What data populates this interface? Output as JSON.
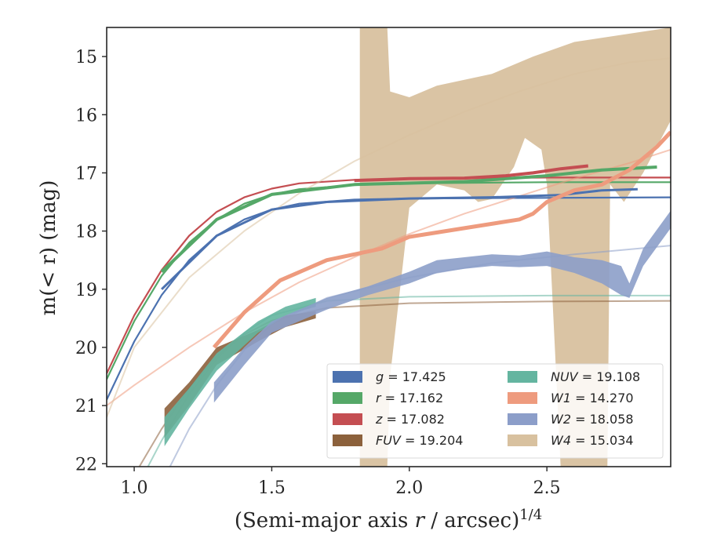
{
  "chart_data": {
    "type": "line",
    "xlabel_main": "(Semi-major axis ",
    "xlabel_var": "r",
    "xlabel_unit": " / arcsec)",
    "xlabel_sup": "1/4",
    "ylabel": "m(< r) (mag)",
    "xlim": [
      0.9,
      2.95
    ],
    "ylim": [
      22.05,
      14.5
    ],
    "y_inverted": true,
    "x_ticks": [
      1.0,
      1.5,
      2.0,
      2.5
    ],
    "x_tick_labels": [
      "1.0",
      "1.5",
      "2.0",
      "2.5"
    ],
    "y_ticks": [
      15,
      16,
      17,
      18,
      19,
      20,
      21,
      22
    ],
    "y_tick_labels": [
      "15",
      "16",
      "17",
      "18",
      "19",
      "20",
      "21",
      "22"
    ],
    "grid": false,
    "legend_position": "lower-right",
    "legend": [
      {
        "band": "g",
        "value": "= 17.425",
        "color": "#4c72b0",
        "italic_multi": false
      },
      {
        "band": "r",
        "value": "= 17.162",
        "color": "#55a868",
        "italic_multi": false
      },
      {
        "band": "z",
        "value": "= 17.082",
        "color": "#c44e52",
        "italic_multi": false
      },
      {
        "band": "FUV",
        "value": "= 19.204",
        "color": "#8c613c",
        "italic_multi": true
      },
      {
        "band": "NUV",
        "value": "= 19.108",
        "color": "#64b5a0",
        "italic_multi": true
      },
      {
        "band": "W1",
        "value": "= 14.270",
        "color": "#ee9b7e",
        "italic_multi": true
      },
      {
        "band": "W2",
        "value": "= 18.058",
        "color": "#8c9ec9",
        "italic_multi": true
      },
      {
        "band": "W4",
        "value": "= 15.034",
        "color": "#d8c19f",
        "italic_multi": true
      }
    ],
    "series": [
      {
        "name": "g",
        "color": "#4c72b0",
        "model": [
          [
            0.9,
            20.9
          ],
          [
            1.0,
            19.9
          ],
          [
            1.1,
            19.1
          ],
          [
            1.2,
            18.5
          ],
          [
            1.3,
            18.08
          ],
          [
            1.4,
            17.8
          ],
          [
            1.5,
            17.63
          ],
          [
            1.6,
            17.53
          ],
          [
            1.8,
            17.46
          ],
          [
            2.0,
            17.44
          ],
          [
            2.5,
            17.43
          ],
          [
            2.95,
            17.42
          ]
        ],
        "data": [
          [
            1.1,
            19.0
          ],
          [
            1.3,
            18.08
          ],
          [
            1.5,
            17.63
          ],
          [
            1.7,
            17.5
          ],
          [
            2.0,
            17.44
          ],
          [
            2.3,
            17.42
          ],
          [
            2.55,
            17.38
          ],
          [
            2.7,
            17.3
          ],
          [
            2.83,
            17.28
          ]
        ],
        "data_width": 3
      },
      {
        "name": "r",
        "color": "#55a868",
        "model": [
          [
            0.9,
            20.55
          ],
          [
            1.0,
            19.55
          ],
          [
            1.1,
            18.77
          ],
          [
            1.2,
            18.2
          ],
          [
            1.3,
            17.8
          ],
          [
            1.4,
            17.53
          ],
          [
            1.5,
            17.37
          ],
          [
            1.6,
            17.28
          ],
          [
            1.8,
            17.21
          ],
          [
            2.0,
            17.18
          ],
          [
            2.5,
            17.16
          ],
          [
            2.95,
            17.16
          ]
        ],
        "data": [
          [
            1.1,
            18.7
          ],
          [
            1.3,
            17.8
          ],
          [
            1.5,
            17.37
          ],
          [
            1.8,
            17.2
          ],
          [
            2.2,
            17.15
          ],
          [
            2.5,
            17.05
          ],
          [
            2.7,
            16.95
          ],
          [
            2.9,
            16.9
          ]
        ],
        "data_width": 4
      },
      {
        "name": "z",
        "color": "#c44e52",
        "model": [
          [
            0.9,
            20.45
          ],
          [
            1.0,
            19.45
          ],
          [
            1.1,
            18.67
          ],
          [
            1.2,
            18.08
          ],
          [
            1.3,
            17.67
          ],
          [
            1.4,
            17.42
          ],
          [
            1.5,
            17.27
          ],
          [
            1.6,
            17.18
          ],
          [
            1.8,
            17.12
          ],
          [
            2.0,
            17.1
          ],
          [
            2.5,
            17.08
          ],
          [
            2.95,
            17.08
          ]
        ],
        "data": [
          [
            1.8,
            17.13
          ],
          [
            2.0,
            17.1
          ],
          [
            2.2,
            17.09
          ],
          [
            2.35,
            17.05
          ],
          [
            2.45,
            17.0
          ],
          [
            2.55,
            16.93
          ],
          [
            2.65,
            16.88
          ]
        ],
        "data_width": 4
      },
      {
        "name": "FUV",
        "color": "#8c613c",
        "model": [
          [
            1.0,
            22.2
          ],
          [
            1.1,
            21.4
          ],
          [
            1.2,
            20.7
          ],
          [
            1.3,
            20.15
          ],
          [
            1.4,
            19.78
          ],
          [
            1.5,
            19.54
          ],
          [
            1.7,
            19.32
          ],
          [
            2.0,
            19.24
          ],
          [
            2.5,
            19.21
          ],
          [
            2.95,
            19.2
          ]
        ],
        "band": [
          [
            1.11,
            21.05,
            21.55
          ],
          [
            1.2,
            20.6,
            21.0
          ],
          [
            1.3,
            20.0,
            20.3
          ],
          [
            1.45,
            19.7,
            19.9
          ],
          [
            1.55,
            19.45,
            19.65
          ],
          [
            1.66,
            19.38,
            19.5
          ]
        ]
      },
      {
        "name": "NUV",
        "color": "#64b5a0",
        "model": [
          [
            1.0,
            22.5
          ],
          [
            1.1,
            21.6
          ],
          [
            1.2,
            20.8
          ],
          [
            1.3,
            20.2
          ],
          [
            1.4,
            19.75
          ],
          [
            1.5,
            19.45
          ],
          [
            1.7,
            19.2
          ],
          [
            2.0,
            19.13
          ],
          [
            2.5,
            19.11
          ],
          [
            2.95,
            19.11
          ]
        ],
        "band": [
          [
            1.11,
            21.2,
            21.7
          ],
          [
            1.2,
            20.7,
            21.05
          ],
          [
            1.3,
            20.1,
            20.4
          ],
          [
            1.45,
            19.55,
            19.75
          ],
          [
            1.55,
            19.3,
            19.45
          ],
          [
            1.66,
            19.15,
            19.3
          ]
        ]
      },
      {
        "name": "W1",
        "color": "#ee9b7e",
        "model": [
          [
            0.9,
            21.0
          ],
          [
            1.0,
            20.65
          ],
          [
            1.2,
            20.0
          ],
          [
            1.4,
            19.4
          ],
          [
            1.6,
            18.88
          ],
          [
            1.8,
            18.45
          ],
          [
            2.0,
            18.05
          ],
          [
            2.2,
            17.7
          ],
          [
            2.4,
            17.4
          ],
          [
            2.6,
            17.1
          ],
          [
            2.8,
            16.83
          ],
          [
            2.95,
            16.6
          ]
        ],
        "data": [
          [
            1.29,
            20.0
          ],
          [
            1.4,
            19.4
          ],
          [
            1.53,
            18.85
          ],
          [
            1.7,
            18.5
          ],
          [
            1.9,
            18.3
          ],
          [
            2.0,
            18.1
          ],
          [
            2.2,
            17.95
          ],
          [
            2.4,
            17.8
          ],
          [
            2.45,
            17.7
          ],
          [
            2.5,
            17.5
          ],
          [
            2.6,
            17.3
          ],
          [
            2.7,
            17.2
          ],
          [
            2.8,
            16.95
          ],
          [
            2.9,
            16.55
          ],
          [
            2.95,
            16.3
          ]
        ],
        "data_width": 5
      },
      {
        "name": "W2",
        "color": "#8c9ec9",
        "model": [
          [
            1.13,
            22.05
          ],
          [
            1.2,
            21.4
          ],
          [
            1.3,
            20.65
          ],
          [
            1.4,
            20.05
          ],
          [
            1.5,
            19.6
          ],
          [
            1.7,
            19.15
          ],
          [
            2.0,
            18.8
          ],
          [
            2.3,
            18.55
          ],
          [
            2.6,
            18.4
          ],
          [
            2.95,
            18.25
          ]
        ],
        "band": [
          [
            1.29,
            20.6,
            20.95
          ],
          [
            1.4,
            20.0,
            20.3
          ],
          [
            1.5,
            19.55,
            19.75
          ],
          [
            1.6,
            19.35,
            19.55
          ],
          [
            1.7,
            19.15,
            19.35
          ],
          [
            1.85,
            18.95,
            19.1
          ],
          [
            2.0,
            18.7,
            18.9
          ],
          [
            2.1,
            18.5,
            18.72
          ],
          [
            2.2,
            18.45,
            18.65
          ],
          [
            2.3,
            18.4,
            18.6
          ],
          [
            2.4,
            18.42,
            18.62
          ],
          [
            2.5,
            18.35,
            18.6
          ],
          [
            2.6,
            18.45,
            18.72
          ],
          [
            2.7,
            18.5,
            18.9
          ],
          [
            2.77,
            18.6,
            19.1
          ],
          [
            2.8,
            18.9,
            19.15
          ],
          [
            2.85,
            18.3,
            18.6
          ],
          [
            2.95,
            17.65,
            17.95
          ]
        ]
      },
      {
        "name": "W4",
        "color": "#d8c19f",
        "model": [
          [
            0.9,
            21.2
          ],
          [
            1.0,
            20.0
          ],
          [
            1.2,
            18.8
          ],
          [
            1.4,
            18.0
          ],
          [
            1.6,
            17.35
          ],
          [
            1.8,
            16.8
          ],
          [
            2.0,
            16.35
          ],
          [
            2.2,
            15.95
          ],
          [
            2.4,
            15.6
          ],
          [
            2.6,
            15.3
          ],
          [
            2.8,
            15.1
          ],
          [
            2.95,
            15.03
          ]
        ],
        "band_upper": [
          [
            1.82,
            14.5
          ],
          [
            1.92,
            14.5
          ],
          [
            1.93,
            15.6
          ],
          [
            2.0,
            15.7
          ],
          [
            2.1,
            15.5
          ],
          [
            2.3,
            15.3
          ],
          [
            2.45,
            15.0
          ],
          [
            2.6,
            14.75
          ],
          [
            2.95,
            14.5
          ]
        ],
        "band_lower": [
          [
            1.82,
            22.05
          ],
          [
            1.92,
            22.05
          ],
          [
            1.93,
            20.5
          ],
          [
            2.0,
            17.6
          ],
          [
            2.1,
            17.2
          ],
          [
            2.2,
            17.3
          ],
          [
            2.25,
            17.5
          ],
          [
            2.3,
            17.45
          ],
          [
            2.38,
            16.9
          ],
          [
            2.42,
            16.4
          ],
          [
            2.48,
            16.6
          ],
          [
            2.5,
            17.2
          ],
          [
            2.55,
            22.05
          ],
          [
            2.72,
            22.05
          ],
          [
            2.73,
            17.2
          ],
          [
            2.78,
            17.5
          ],
          [
            2.85,
            17.0
          ],
          [
            2.95,
            16.1
          ]
        ]
      }
    ]
  }
}
